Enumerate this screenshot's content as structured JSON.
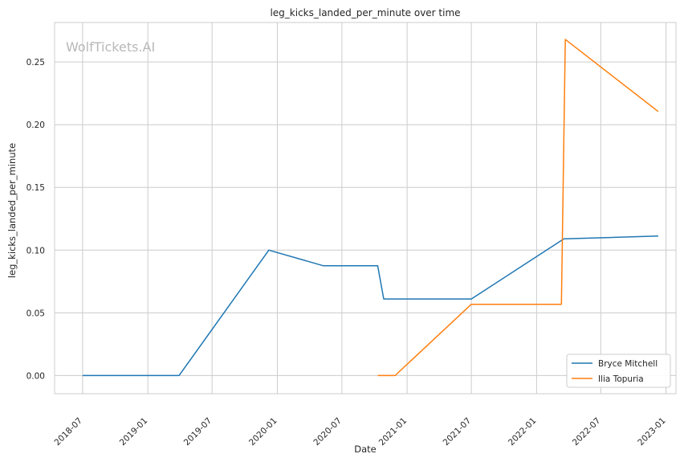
{
  "watermark": "WolfTickets.AI",
  "chart_data": {
    "type": "line",
    "title": "leg_kicks_landed_per_minute over time",
    "xlabel": "Date",
    "ylabel": "leg_kicks_landed_per_minute",
    "x_ticks": [
      "2018-07",
      "2019-01",
      "2019-07",
      "2020-01",
      "2020-07",
      "2021-01",
      "2021-07",
      "2022-01",
      "2022-07",
      "2023-01"
    ],
    "y_ticks": [
      "0.00",
      "0.05",
      "0.10",
      "0.15",
      "0.20",
      "0.25"
    ],
    "xlim": [
      "2018-04-13",
      "2023-01-29"
    ],
    "ylim": [
      -0.0145,
      0.2815
    ],
    "grid": true,
    "legend_position": "lower right",
    "series": [
      {
        "name": "Bryce Mitchell",
        "color": "#1f77b4",
        "points": [
          {
            "x": "2018-07-01",
            "y": 0.0
          },
          {
            "x": "2019-03-30",
            "y": 0.0
          },
          {
            "x": "2019-12-08",
            "y": 0.1
          },
          {
            "x": "2020-05-10",
            "y": 0.0875
          },
          {
            "x": "2020-10-10",
            "y": 0.0875
          },
          {
            "x": "2020-10-27",
            "y": 0.061
          },
          {
            "x": "2021-07-01",
            "y": 0.061
          },
          {
            "x": "2022-03-19",
            "y": 0.109
          },
          {
            "x": "2022-12-10",
            "y": 0.1112
          }
        ]
      },
      {
        "name": "Ilia Topuria",
        "color": "#ff7f0e",
        "points": [
          {
            "x": "2020-10-10",
            "y": 0.0
          },
          {
            "x": "2020-11-28",
            "y": 0.0
          },
          {
            "x": "2021-07-01",
            "y": 0.0568
          },
          {
            "x": "2022-03-12",
            "y": 0.0568
          },
          {
            "x": "2022-03-23",
            "y": 0.268
          },
          {
            "x": "2022-12-10",
            "y": 0.2105
          }
        ]
      }
    ]
  }
}
